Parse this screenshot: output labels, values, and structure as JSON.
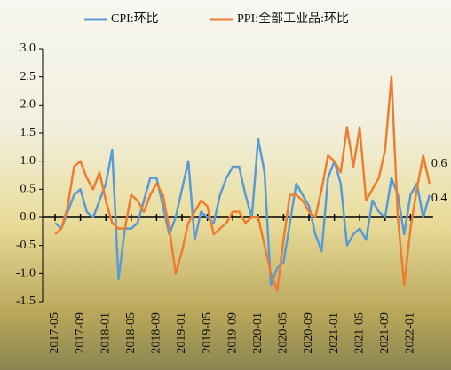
{
  "chart_data": {
    "type": "line",
    "categories": [
      "2017-05",
      null,
      null,
      null,
      "2017-09",
      null,
      null,
      null,
      "2018-01",
      null,
      null,
      null,
      "2018-05",
      null,
      null,
      null,
      "2018-09",
      null,
      null,
      null,
      "2019-01",
      null,
      null,
      null,
      "2019-05",
      null,
      null,
      null,
      "2019-09",
      null,
      null,
      null,
      "2020-01",
      null,
      null,
      null,
      "2020-05",
      null,
      null,
      null,
      "2020-09",
      null,
      null,
      null,
      "2021-01",
      null,
      null,
      null,
      "2021-05",
      null,
      null,
      null,
      "2021-09",
      null,
      null,
      null,
      "2022-01",
      null,
      null,
      null
    ],
    "series": [
      {
        "name": "CPI:环比",
        "color": "#5b9bd5",
        "values": [
          -0.1,
          -0.2,
          0.1,
          0.4,
          0.5,
          0.1,
          0.0,
          0.3,
          0.6,
          1.2,
          -1.1,
          -0.2,
          -0.2,
          -0.1,
          0.3,
          0.7,
          0.7,
          0.2,
          -0.3,
          0.0,
          0.5,
          1.0,
          -0.4,
          0.1,
          0.0,
          -0.1,
          0.4,
          0.7,
          0.9,
          0.9,
          0.4,
          0.0,
          1.4,
          0.8,
          -1.2,
          -0.9,
          -0.8,
          -0.1,
          0.6,
          0.4,
          0.2,
          -0.3,
          -0.6,
          0.7,
          1.0,
          0.6,
          -0.5,
          -0.3,
          -0.2,
          -0.4,
          0.3,
          0.1,
          0.0,
          0.7,
          0.4,
          -0.3,
          0.4,
          0.6,
          0.0,
          0.4
        ]
      },
      {
        "name": "PPI:全部工业品:环比",
        "color": "#ed7d31",
        "values": [
          -0.3,
          -0.2,
          0.2,
          0.9,
          1.0,
          0.7,
          0.5,
          0.8,
          0.3,
          -0.1,
          -0.2,
          -0.2,
          0.4,
          0.3,
          0.1,
          0.4,
          0.6,
          0.4,
          -0.2,
          -1.0,
          -0.6,
          -0.1,
          0.1,
          0.3,
          0.2,
          -0.3,
          -0.2,
          -0.1,
          0.1,
          0.1,
          -0.1,
          0.0,
          0.0,
          -0.5,
          -1.0,
          -1.3,
          -0.4,
          0.4,
          0.4,
          0.3,
          0.1,
          0.0,
          0.5,
          1.1,
          1.0,
          0.8,
          1.6,
          0.9,
          1.6,
          0.3,
          0.5,
          0.7,
          1.2,
          2.5,
          0.0,
          -1.2,
          -0.2,
          0.5,
          1.1,
          0.6
        ]
      }
    ],
    "ylim": [
      -1.5,
      3.0
    ],
    "yticks": [
      {
        "value": -1.5,
        "label": "-1.5"
      },
      {
        "value": -1.0,
        "label": "-1.0"
      },
      -0.5,
      {
        "value": 0,
        "label": "0.0"
      },
      0.5,
      {
        "value": 1,
        "label": "1.0"
      },
      1.5,
      {
        "value": 2,
        "label": "2.0"
      },
      2.5,
      {
        "value": 3,
        "label": "3.0"
      }
    ],
    "legend": "top"
  }
}
